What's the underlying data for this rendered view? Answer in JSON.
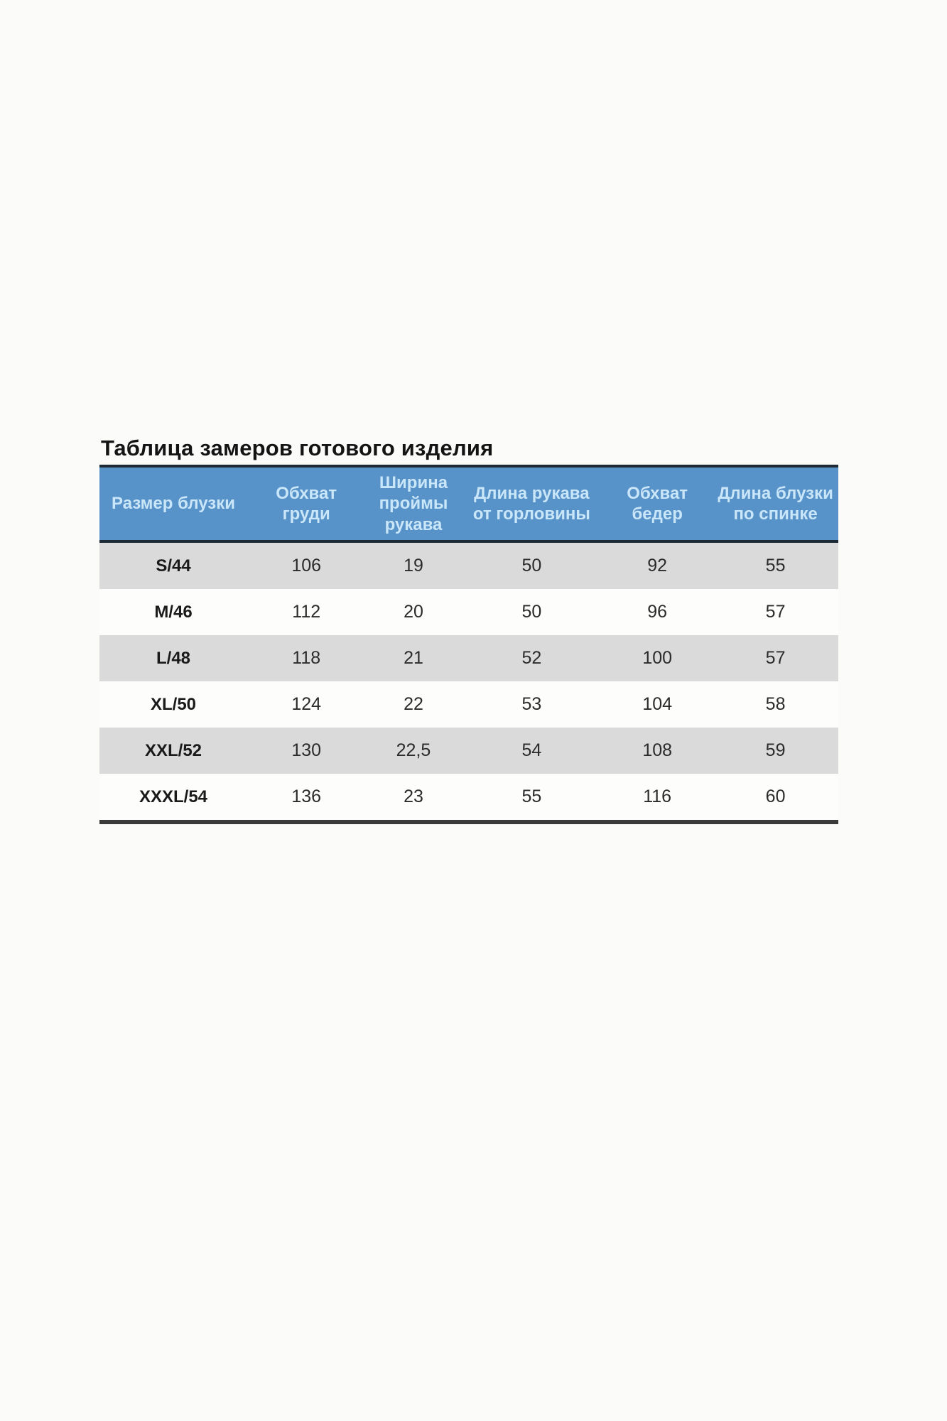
{
  "title": "Таблица замеров готового изделия",
  "table": {
    "header_bg": "#5792c9",
    "header_text_color": "#cae6f9",
    "row_alt_bg": "#dbdadb",
    "row_bg": "#fdfdfc",
    "border_color": "#1c2a36",
    "columns": [
      "Размер блузки",
      "Обхват груди",
      "Ширина проймы рукава",
      "Длина рукава от горловины",
      "Обхват бедер",
      "Длина блузки по спинке"
    ],
    "column_widths_percent": [
      20,
      16,
      13,
      19,
      15,
      17
    ],
    "rows": [
      {
        "size": "S/44",
        "values": [
          "106",
          "19",
          "50",
          "92",
          "55"
        ]
      },
      {
        "size": "M/46",
        "values": [
          "112",
          "20",
          "50",
          "96",
          "57"
        ]
      },
      {
        "size": "L/48",
        "values": [
          "118",
          "21",
          "52",
          "100",
          "57"
        ]
      },
      {
        "size": "XL/50",
        "values": [
          "124",
          "22",
          "53",
          "104",
          "58"
        ]
      },
      {
        "size": "XXL/52",
        "values": [
          "130",
          "22,5",
          "54",
          "108",
          "59"
        ]
      },
      {
        "size": "XXXL/54",
        "values": [
          "136",
          "23",
          "55",
          "116",
          "60"
        ]
      }
    ]
  }
}
